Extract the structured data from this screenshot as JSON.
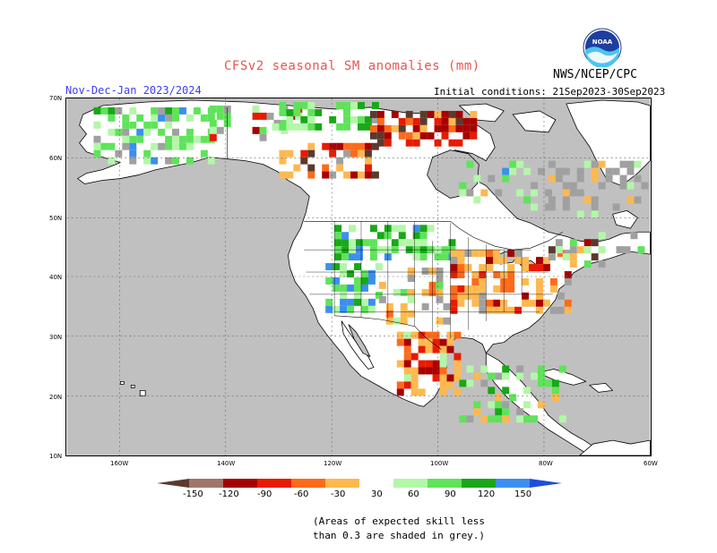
{
  "title": "CFSv2 seasonal SM anomalies (mm)",
  "season": "Nov-Dec-Jan 2023/2024",
  "initial_conditions": "Initial conditions: 21Sep2023-30Sep2023",
  "agency": "NWS/NCEP/CPC",
  "logo_text": "NOAA",
  "latitude_labels": [
    "70N",
    "60N",
    "50N",
    "40N",
    "30N",
    "20N",
    "10N"
  ],
  "longitude_labels": [
    "160W",
    "140W",
    "120W",
    "100W",
    "80W",
    "60W"
  ],
  "colorbar": {
    "labels": [
      "-150",
      "-120",
      "-90",
      "-60",
      "-30",
      "30",
      "60",
      "90",
      "120",
      "150"
    ],
    "colors": [
      "#5b3a2e",
      "#a0766a",
      "#a80000",
      "#e81a00",
      "#ff6a1a",
      "#fdb950",
      "#ffffff",
      "#b3f7a8",
      "#5fe35a",
      "#18a818",
      "#3c8ff0",
      "#1e4fd8"
    ]
  },
  "note": [
    "(Areas of expected skill less",
    "than 0.3 are shaded in grey.)"
  ],
  "map_colors": {
    "ocean": "#c0c0c0",
    "land": "#ffffff",
    "coast": "#000000",
    "grid": "#666666"
  }
}
